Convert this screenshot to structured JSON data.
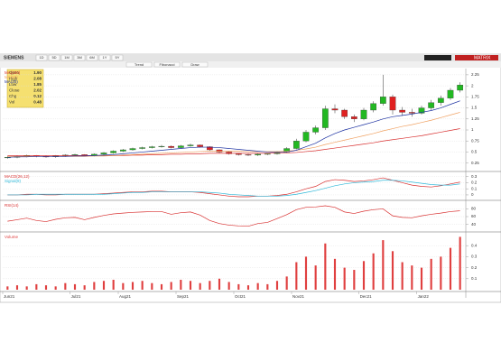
{
  "toolbar": {
    "symbol": "SIEMENS",
    "buttons": [
      "1D",
      "5D",
      "1M",
      "3M",
      "6M",
      "1Y",
      "5Y"
    ],
    "tools": [
      "Trend",
      "Fibonacci",
      "Draw"
    ],
    "right": [
      "MATRIX"
    ]
  },
  "info": {
    "rows": [
      [
        "Open",
        "1.90"
      ],
      [
        "High",
        "2.08"
      ],
      [
        "Low",
        "1.85"
      ],
      [
        "Close",
        "2.02"
      ],
      [
        "Chg",
        "0.12"
      ],
      [
        "Vol",
        "0.48"
      ]
    ]
  },
  "chart_data": [
    {
      "type": "candlestick",
      "legend_corner": "top-left",
      "grid": true,
      "open": [
        0.37,
        0.38,
        0.4,
        0.42,
        0.4,
        0.39,
        0.41,
        0.43,
        0.44,
        0.42,
        0.45,
        0.48,
        0.52,
        0.55,
        0.58,
        0.6,
        0.62,
        0.63,
        0.6,
        0.64,
        0.66,
        0.62,
        0.55,
        0.5,
        0.46,
        0.44,
        0.43,
        0.45,
        0.46,
        0.5,
        0.58,
        0.75,
        0.95,
        1.05,
        1.48,
        1.45,
        1.3,
        1.25,
        1.45,
        1.6,
        1.75,
        1.45,
        1.4,
        1.38,
        1.5,
        1.62,
        1.72,
        1.9
      ],
      "high": [
        0.4,
        0.42,
        0.44,
        0.43,
        0.42,
        0.43,
        0.45,
        0.46,
        0.45,
        0.47,
        0.5,
        0.54,
        0.57,
        0.6,
        0.62,
        0.64,
        0.66,
        0.65,
        0.66,
        0.69,
        0.67,
        0.63,
        0.56,
        0.52,
        0.48,
        0.46,
        0.47,
        0.48,
        0.52,
        0.61,
        0.8,
        1.0,
        1.1,
        1.55,
        1.58,
        1.48,
        1.35,
        1.5,
        1.65,
        2.25,
        1.8,
        1.52,
        1.48,
        1.55,
        1.68,
        1.78,
        1.95,
        2.08
      ],
      "low": [
        0.35,
        0.36,
        0.38,
        0.38,
        0.37,
        0.37,
        0.39,
        0.41,
        0.4,
        0.4,
        0.43,
        0.46,
        0.5,
        0.53,
        0.56,
        0.58,
        0.6,
        0.58,
        0.58,
        0.62,
        0.6,
        0.53,
        0.48,
        0.44,
        0.42,
        0.41,
        0.41,
        0.43,
        0.44,
        0.48,
        0.56,
        0.72,
        0.9,
        1.0,
        1.38,
        1.25,
        1.18,
        1.22,
        1.4,
        1.55,
        1.35,
        1.32,
        1.3,
        1.35,
        1.45,
        1.55,
        1.68,
        1.85
      ],
      "close": [
        0.38,
        0.4,
        0.42,
        0.4,
        0.39,
        0.41,
        0.43,
        0.44,
        0.42,
        0.45,
        0.48,
        0.52,
        0.55,
        0.58,
        0.6,
        0.62,
        0.63,
        0.6,
        0.64,
        0.66,
        0.62,
        0.55,
        0.5,
        0.46,
        0.44,
        0.43,
        0.45,
        0.46,
        0.5,
        0.58,
        0.75,
        0.95,
        1.05,
        1.48,
        1.45,
        1.3,
        1.25,
        1.45,
        1.6,
        1.75,
        1.45,
        1.4,
        1.38,
        1.5,
        1.62,
        1.72,
        1.9,
        2.02
      ],
      "up_color": "#22b822",
      "down_color": "#e02020",
      "series": [
        {
          "name": "MA(100)",
          "color": "#d83030",
          "values": [
            0.42,
            0.42,
            0.42,
            0.42,
            0.42,
            0.42,
            0.42,
            0.42,
            0.42,
            0.42,
            0.42,
            0.42,
            0.42,
            0.43,
            0.43,
            0.44,
            0.44,
            0.45,
            0.45,
            0.46,
            0.46,
            0.47,
            0.47,
            0.47,
            0.47,
            0.47,
            0.47,
            0.47,
            0.48,
            0.48,
            0.49,
            0.51,
            0.53,
            0.56,
            0.59,
            0.62,
            0.65,
            0.68,
            0.71,
            0.75,
            0.78,
            0.81,
            0.84,
            0.87,
            0.91,
            0.95,
            0.99,
            1.03
          ]
        },
        {
          "name": "MA(50)",
          "color": "#f0a060",
          "values": [
            0.4,
            0.4,
            0.4,
            0.4,
            0.4,
            0.4,
            0.4,
            0.4,
            0.4,
            0.41,
            0.41,
            0.42,
            0.43,
            0.44,
            0.45,
            0.46,
            0.47,
            0.48,
            0.49,
            0.5,
            0.51,
            0.52,
            0.52,
            0.52,
            0.52,
            0.51,
            0.51,
            0.51,
            0.51,
            0.52,
            0.54,
            0.57,
            0.61,
            0.67,
            0.72,
            0.77,
            0.82,
            0.87,
            0.92,
            0.98,
            1.03,
            1.08,
            1.12,
            1.17,
            1.22,
            1.28,
            1.34,
            1.4
          ]
        },
        {
          "name": "MA(20)",
          "color": "#1a2fa0",
          "values": [
            0.38,
            0.39,
            0.39,
            0.4,
            0.4,
            0.4,
            0.4,
            0.41,
            0.41,
            0.42,
            0.43,
            0.44,
            0.46,
            0.48,
            0.5,
            0.52,
            0.54,
            0.56,
            0.58,
            0.6,
            0.61,
            0.61,
            0.6,
            0.58,
            0.56,
            0.54,
            0.52,
            0.5,
            0.49,
            0.5,
            0.54,
            0.62,
            0.7,
            0.82,
            0.92,
            1.0,
            1.06,
            1.12,
            1.18,
            1.25,
            1.3,
            1.33,
            1.36,
            1.4,
            1.44,
            1.5,
            1.58,
            1.66
          ]
        }
      ],
      "ylim": [
        0.1,
        2.35
      ],
      "yticks": [
        0.25,
        0.5,
        0.75,
        1,
        1.25,
        1.5,
        1.75,
        2,
        2.25
      ]
    },
    {
      "type": "line",
      "legend_corner": "top-left",
      "grid": true,
      "series": [
        {
          "name": "MACD(26,12)",
          "color": "#d83030",
          "values": [
            0,
            0,
            0.01,
            0.01,
            0,
            0,
            0.01,
            0.01,
            0.01,
            0.01,
            0.02,
            0.03,
            0.04,
            0.05,
            0.05,
            0.06,
            0.06,
            0.05,
            0.05,
            0.05,
            0.04,
            0.02,
            0,
            -0.02,
            -0.03,
            -0.03,
            -0.02,
            -0.02,
            -0.01,
            0.01,
            0.05,
            0.1,
            0.14,
            0.22,
            0.25,
            0.24,
            0.22,
            0.23,
            0.25,
            0.28,
            0.24,
            0.2,
            0.16,
            0.14,
            0.13,
            0.15,
            0.18,
            0.21
          ]
        },
        {
          "name": "Signal(9)",
          "color": "#30b8d8",
          "values": [
            0,
            0,
            0,
            0.01,
            0.01,
            0.01,
            0.01,
            0.01,
            0.01,
            0.01,
            0.01,
            0.02,
            0.03,
            0.04,
            0.04,
            0.05,
            0.05,
            0.05,
            0.05,
            0.05,
            0.05,
            0.04,
            0.03,
            0.01,
            0,
            -0.01,
            -0.02,
            -0.02,
            -0.02,
            -0.01,
            0.01,
            0.04,
            0.07,
            0.11,
            0.15,
            0.18,
            0.2,
            0.21,
            0.22,
            0.24,
            0.24,
            0.23,
            0.21,
            0.19,
            0.17,
            0.16,
            0.16,
            0.18
          ]
        }
      ],
      "ylim": [
        -0.06,
        0.34
      ],
      "yticks": [
        0,
        0.1,
        0.2,
        0.3
      ]
    },
    {
      "type": "line",
      "legend_corner": "top-left",
      "grid": true,
      "series": [
        {
          "name": "RSI(14)",
          "color": "#d83030",
          "values": [
            48,
            52,
            56,
            50,
            47,
            53,
            57,
            58,
            52,
            58,
            63,
            67,
            69,
            71,
            72,
            73,
            73,
            66,
            70,
            72,
            64,
            50,
            42,
            38,
            36,
            35,
            42,
            45,
            55,
            65,
            78,
            84,
            85,
            88,
            84,
            72,
            68,
            74,
            78,
            80,
            62,
            58,
            57,
            62,
            66,
            69,
            73,
            75
          ]
        }
      ],
      "ylim": [
        25,
        95
      ],
      "yticks": [
        40,
        60,
        80
      ]
    },
    {
      "type": "bar",
      "legend_corner": "top-left",
      "grid": true,
      "name": "Volume",
      "color": "#e04040",
      "categories": [
        "Jun21",
        null,
        null,
        null,
        null,
        null,
        null,
        "Jul21",
        null,
        null,
        null,
        null,
        "Aug21",
        null,
        null,
        null,
        null,
        null,
        "Sep21",
        null,
        null,
        null,
        null,
        null,
        "Oct21",
        null,
        null,
        null,
        null,
        null,
        "Nov21",
        null,
        null,
        null,
        null,
        null,
        null,
        "Dec21",
        null,
        null,
        null,
        null,
        null,
        "Jan22",
        null,
        null,
        null,
        null
      ],
      "values": [
        0.03,
        0.04,
        0.03,
        0.05,
        0.04,
        0.03,
        0.06,
        0.05,
        0.04,
        0.07,
        0.08,
        0.09,
        0.06,
        0.07,
        0.08,
        0.06,
        0.05,
        0.07,
        0.09,
        0.08,
        0.06,
        0.08,
        0.1,
        0.07,
        0.05,
        0.04,
        0.06,
        0.05,
        0.08,
        0.12,
        0.25,
        0.3,
        0.22,
        0.42,
        0.28,
        0.2,
        0.18,
        0.26,
        0.33,
        0.45,
        0.35,
        0.25,
        0.22,
        0.2,
        0.28,
        0.3,
        0.38,
        0.48
      ],
      "ylim": [
        0,
        0.5
      ],
      "yticks": [
        0.1,
        0.2,
        0.3,
        0.4
      ]
    }
  ]
}
